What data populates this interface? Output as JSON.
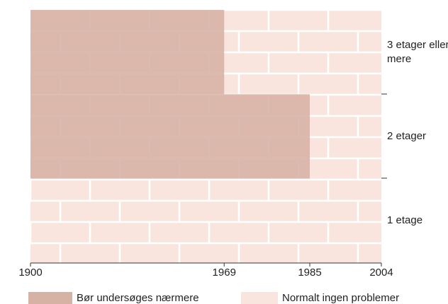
{
  "chart_data": {
    "type": "bar",
    "orientation": "horizontal",
    "categories": [
      "3 etager eller mere",
      "2 etager",
      "1 etage"
    ],
    "series": [
      {
        "name": "Bør undersøges nærmere",
        "color": "#d6b2a4",
        "values": [
          1969,
          1985,
          null
        ]
      }
    ],
    "background_series": {
      "name": "Normalt ingen problemer",
      "color": "#f9e5dd"
    },
    "xlim": [
      1900,
      2004
    ],
    "xticks": [
      1900,
      1969,
      1985,
      2004
    ]
  }
}
